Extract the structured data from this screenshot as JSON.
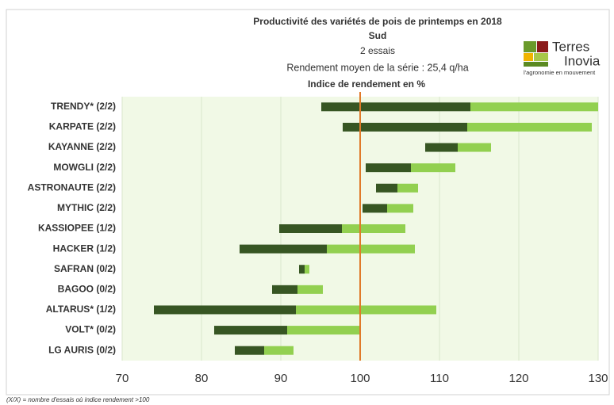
{
  "chart_data": {
    "type": "range-bar",
    "title": "Productivité des variétés de pois de printemps en 2018",
    "subtitle": [
      "Sud",
      "2 essais",
      "Rendement moyen de la série : 25,4 q/ha"
    ],
    "x_label": "Indice de rendement en %",
    "footnote": "(X/X) = nombre d'essais où indice rendement >100",
    "logo": [
      "Terres",
      "Inovia",
      "l'agronomie en mouvement"
    ],
    "categories": [
      "TRENDY* (2/2)",
      "KARPATE (2/2)",
      "KAYANNE (2/2)",
      "MOWGLI (2/2)",
      "ASTRONAUTE (2/2)",
      "MYTHIC (2/2)",
      "KASSIOPEE (1/2)",
      "HACKER (1/2)",
      "SAFRAN (0/2)",
      "BAGOO (0/2)",
      "ALTARUS* (1/2)",
      "VOLT* (0/2)",
      "LG AURIS (0/2)"
    ],
    "low": [
      95.1,
      97.8,
      108.2,
      100.7,
      102.0,
      100.3,
      89.8,
      84.8,
      92.3,
      88.9,
      74.0,
      81.6,
      84.2
    ],
    "mid": [
      113.9,
      113.5,
      112.3,
      106.4,
      104.7,
      103.4,
      97.7,
      95.8,
      93.0,
      92.1,
      91.9,
      90.8,
      87.9
    ],
    "high": [
      130.0,
      129.2,
      116.5,
      112.0,
      107.3,
      106.7,
      105.7,
      106.9,
      93.6,
      95.3,
      109.6,
      99.9,
      91.6
    ],
    "colors": [
      "#375623",
      "#92d050"
    ],
    "reference_line": 100,
    "reference_color": "#e07a2a",
    "xlim": [
      70,
      130
    ],
    "xticks": [
      70,
      80,
      90,
      100,
      110,
      120,
      130
    ],
    "grid": true
  }
}
